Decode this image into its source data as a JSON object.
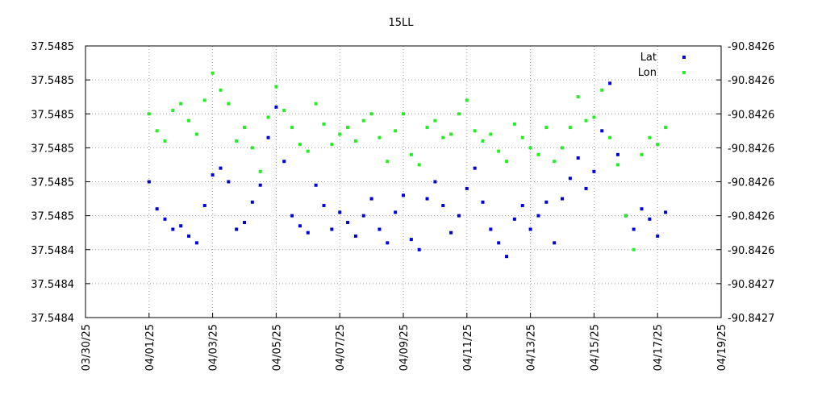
{
  "chart_data": {
    "type": "scatter",
    "title": "15LL",
    "x": [
      2,
      2.25,
      2.5,
      2.75,
      3,
      3.25,
      3.5,
      3.75,
      4,
      4.25,
      4.5,
      4.75,
      5,
      5.25,
      5.5,
      5.75,
      6,
      6.25,
      6.5,
      6.75,
      7,
      7.25,
      7.5,
      7.75,
      8,
      8.25,
      8.5,
      8.75,
      9,
      9.25,
      9.5,
      9.75,
      10,
      10.25,
      10.5,
      10.75,
      11,
      11.25,
      11.5,
      11.75,
      12,
      12.25,
      12.5,
      12.75,
      13,
      13.25,
      13.5,
      13.75,
      14,
      14.25,
      14.5,
      14.75,
      15,
      15.25,
      15.5,
      15.75,
      16,
      16.25,
      16.5,
      16.75,
      17,
      17.25,
      17.5,
      17.75,
      18,
      18.25
    ],
    "series": [
      {
        "name": "Lat",
        "color": "#0000d8",
        "axis": "y",
        "values": [
          37.54846,
          37.548452,
          37.548449,
          37.548446,
          37.548447,
          37.548444,
          37.548442,
          37.548453,
          37.548462,
          37.548464,
          37.54846,
          37.548446,
          37.548448,
          37.548454,
          37.548459,
          37.548473,
          37.548482,
          37.548466,
          37.54845,
          37.548447,
          37.548445,
          37.548459,
          37.548453,
          37.548446,
          37.548451,
          37.548448,
          37.548444,
          37.54845,
          37.548455,
          37.548446,
          37.548442,
          37.548451,
          37.548456,
          37.548443,
          37.54844,
          37.548455,
          37.54846,
          37.548453,
          37.548445,
          37.54845,
          37.548458,
          37.548464,
          37.548454,
          37.548446,
          37.548442,
          37.548438,
          37.548449,
          37.548453,
          37.548446,
          37.54845,
          37.548454,
          37.548442,
          37.548455,
          37.548461,
          37.548467,
          37.548458,
          37.548463,
          37.548475,
          37.548489,
          37.548468,
          37.54845,
          37.548446,
          37.548452,
          37.548449,
          37.548444,
          37.548451
        ]
      },
      {
        "name": "Lon",
        "color": "#22ee22",
        "axis": "y2",
        "values": [
          -90.8426,
          -90.842605,
          -90.842608,
          -90.842599,
          -90.842597,
          -90.842602,
          -90.842606,
          -90.842596,
          -90.842588,
          -90.842593,
          -90.842597,
          -90.842608,
          -90.842604,
          -90.84261,
          -90.842617,
          -90.842601,
          -90.842592,
          -90.842599,
          -90.842604,
          -90.842609,
          -90.842611,
          -90.842597,
          -90.842603,
          -90.842609,
          -90.842606,
          -90.842604,
          -90.842608,
          -90.842602,
          -90.8426,
          -90.842607,
          -90.842614,
          -90.842605,
          -90.8426,
          -90.842612,
          -90.842615,
          -90.842604,
          -90.842602,
          -90.842607,
          -90.842606,
          -90.8426,
          -90.842596,
          -90.842605,
          -90.842608,
          -90.842606,
          -90.842611,
          -90.842614,
          -90.842603,
          -90.842607,
          -90.84261,
          -90.842612,
          -90.842604,
          -90.842614,
          -90.84261,
          -90.842604,
          -90.842595,
          -90.842602,
          -90.842601,
          -90.842593,
          -90.842607,
          -90.842615,
          -90.84263,
          -90.84264,
          -90.842612,
          -90.842607,
          -90.842609,
          -90.842604
        ]
      }
    ],
    "xlim": [
      0,
      20
    ],
    "xticks": [
      {
        "value": 0,
        "label": "03/30/25"
      },
      {
        "value": 2,
        "label": "04/01/25"
      },
      {
        "value": 4,
        "label": "04/03/25"
      },
      {
        "value": 6,
        "label": "04/05/25"
      },
      {
        "value": 8,
        "label": "04/07/25"
      },
      {
        "value": 10,
        "label": "04/09/25"
      },
      {
        "value": 12,
        "label": "04/11/25"
      },
      {
        "value": 14,
        "label": "04/13/25"
      },
      {
        "value": 16,
        "label": "04/15/25"
      },
      {
        "value": 18,
        "label": "04/17/25"
      },
      {
        "value": 20,
        "label": "04/19/25"
      }
    ],
    "ylim": [
      37.54842,
      37.5485
    ],
    "yticks": [
      {
        "value": 37.54842,
        "label": "37.5484"
      },
      {
        "value": 37.54843,
        "label": "37.5484"
      },
      {
        "value": 37.54844,
        "label": "37.5484"
      },
      {
        "value": 37.54845,
        "label": "37.5485"
      },
      {
        "value": 37.54846,
        "label": "37.5485"
      },
      {
        "value": 37.54847,
        "label": "37.5485"
      },
      {
        "value": 37.54848,
        "label": "37.5485"
      },
      {
        "value": 37.54849,
        "label": "37.5485"
      },
      {
        "value": 37.5485,
        "label": "37.5485"
      }
    ],
    "y2lim": [
      -90.84266,
      -90.84258
    ],
    "y2ticks": [
      {
        "value": -90.84266,
        "label": "-90.8427"
      },
      {
        "value": -90.84265,
        "label": "-90.8427"
      },
      {
        "value": -90.84264,
        "label": "-90.8426"
      },
      {
        "value": -90.84263,
        "label": "-90.8426"
      },
      {
        "value": -90.84262,
        "label": "-90.8426"
      },
      {
        "value": -90.84261,
        "label": "-90.8426"
      },
      {
        "value": -90.8426,
        "label": "-90.8426"
      },
      {
        "value": -90.84259,
        "label": "-90.8426"
      },
      {
        "value": -90.84258,
        "label": "-90.8426"
      }
    ],
    "grid": true,
    "legend": "top-right"
  }
}
